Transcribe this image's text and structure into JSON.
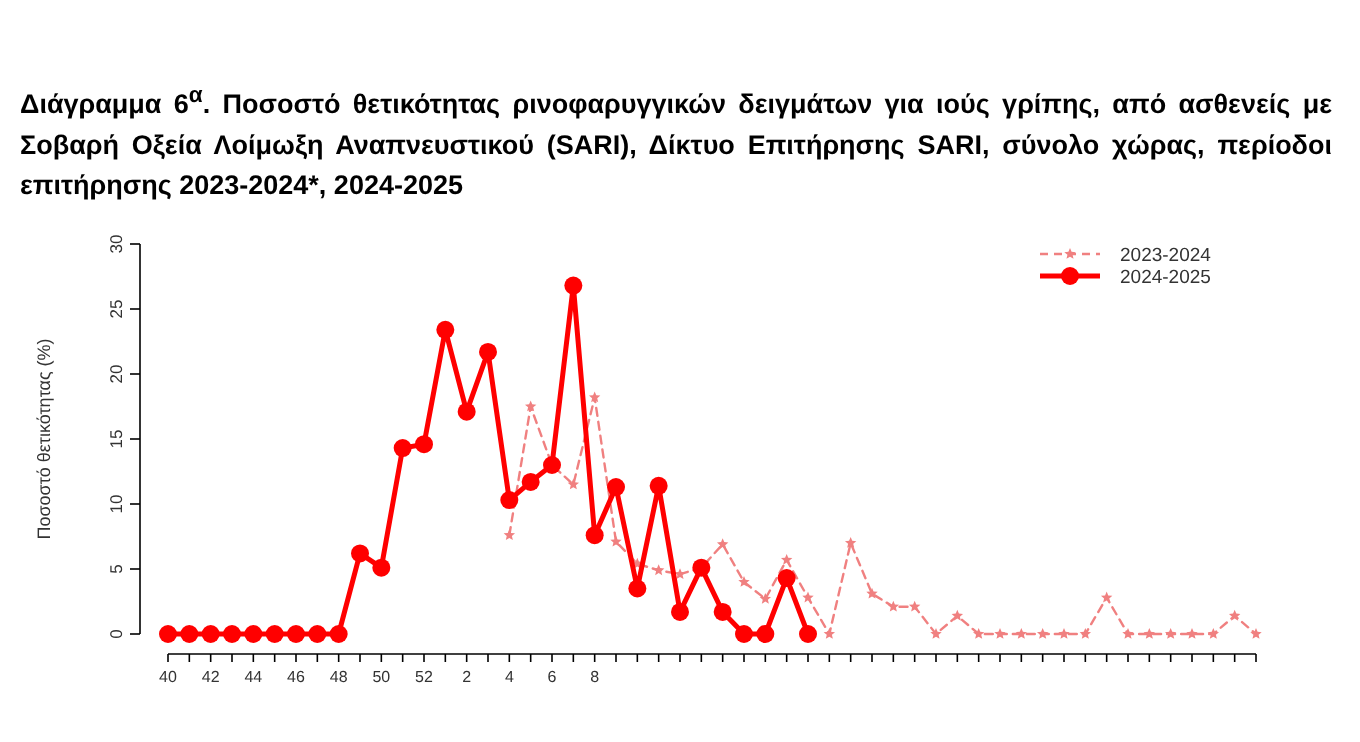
{
  "chart_data": {
    "type": "line",
    "title": "Διάγραμμα 6$^{α}$. Ποσοστό θετικότητας ρινοφαρυγγικών δειγμάτων για ιούς γρίπης, από ασθενείς με Σοβαρή Οξεία Λοίμωξη Αναπνευστικού (SARI), Δίκτυο Επιτήρησης SARI, σύνολο χώρας, περίοδοι επιτήρησης 2023-2024*, 2024-2025",
    "ylabel": "Ποσοστό θετικότητας (%)",
    "categories": [
      "40",
      null,
      "42",
      null,
      "44",
      null,
      "46",
      null,
      "48",
      null,
      "50",
      null,
      "52",
      null,
      "2",
      null,
      "4",
      null,
      "6",
      null,
      "8",
      null,
      null,
      null,
      null,
      null,
      null,
      null,
      null,
      null,
      null,
      null,
      null,
      null,
      null,
      null,
      null,
      null,
      null,
      null,
      null,
      null,
      null,
      null,
      null,
      null,
      null,
      null,
      null,
      null,
      null,
      null
    ],
    "ylim": [
      0,
      30
    ],
    "yticks": [
      0,
      5,
      10,
      15,
      20,
      25,
      30
    ],
    "grid": false,
    "legend": "top right",
    "series": [
      {
        "name": "2023-2024",
        "color": "#f08080",
        "marker": "star",
        "line_style": "dashed",
        "values": [
          null,
          null,
          null,
          null,
          null,
          null,
          null,
          null,
          null,
          null,
          null,
          null,
          null,
          null,
          null,
          null,
          7.6,
          17.5,
          13,
          11.5,
          18.2,
          7.1,
          5.4,
          4.9,
          4.6,
          5.1,
          6.9,
          4.0,
          2.7,
          5.7,
          2.8,
          0,
          7.0,
          3.1,
          2.1,
          2.1,
          0,
          1.4,
          0,
          0,
          0,
          0,
          0,
          0,
          2.8,
          0,
          0,
          0,
          0,
          0,
          1.4,
          0
        ]
      },
      {
        "name": "2024-2025",
        "color": "#ff0000",
        "marker": "circle",
        "line_style": "solid",
        "values": [
          0,
          0,
          0,
          0,
          0,
          0,
          0,
          0,
          0,
          6.2,
          5.1,
          14.3,
          14.6,
          23.4,
          17.1,
          21.7,
          10.3,
          11.7,
          13,
          26.8,
          7.6,
          11.3,
          3.5,
          11.4,
          1.7,
          5.1,
          1.7,
          0,
          0,
          4.3,
          0,
          null,
          null,
          null,
          null,
          null,
          null,
          null,
          null,
          null,
          null,
          null,
          null,
          null,
          null,
          null,
          null,
          null,
          null,
          null,
          null,
          null
        ]
      }
    ]
  }
}
